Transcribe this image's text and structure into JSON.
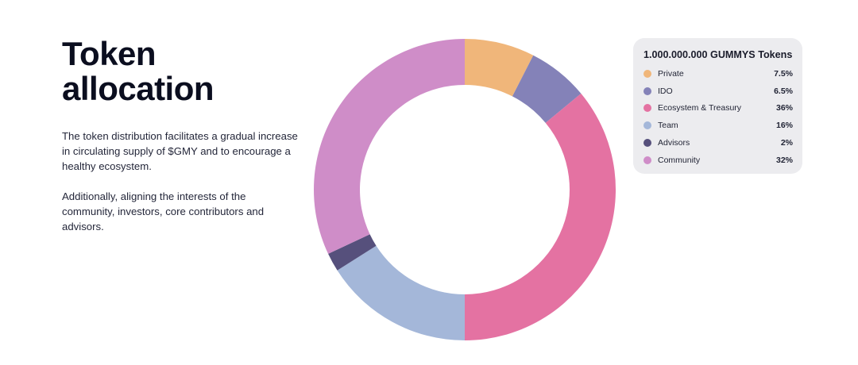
{
  "heading": {
    "line1": "Token",
    "line2": "allocation"
  },
  "paragraphs": [
    "The token distribution facilitates a gradual increase in circulating supply of $GMY and to encourage a healthy ecosystem.",
    "Additionally, aligning the interests of the community, investors, core contributors and advisors."
  ],
  "legend": {
    "title": "1.000.000.000 GUMMYS Tokens",
    "items": [
      {
        "label": "Private",
        "value": "7.5%",
        "color": "#f0b67a"
      },
      {
        "label": "IDO",
        "value": "6.5%",
        "color": "#8482b8"
      },
      {
        "label": "Ecosystem & Treasury",
        "value": "36%",
        "color": "#e472a2"
      },
      {
        "label": "Team",
        "value": "16%",
        "color": "#a4b7d9"
      },
      {
        "label": "Advisors",
        "value": "2%",
        "color": "#56507c"
      },
      {
        "label": "Community",
        "value": "32%",
        "color": "#cf8dc8"
      }
    ]
  },
  "chart_data": {
    "type": "pie",
    "donut": true,
    "title": "",
    "categories": [
      "Private",
      "IDO",
      "Ecosystem & Treasury",
      "Team",
      "Advisors",
      "Community"
    ],
    "values": [
      7.5,
      6.5,
      36,
      16,
      2,
      32
    ],
    "colors": [
      "#f0b67a",
      "#8482b8",
      "#e472a2",
      "#a4b7d9",
      "#56507c",
      "#cf8dc8"
    ],
    "start": "top",
    "direction": "clockwise",
    "legend": "right"
  }
}
